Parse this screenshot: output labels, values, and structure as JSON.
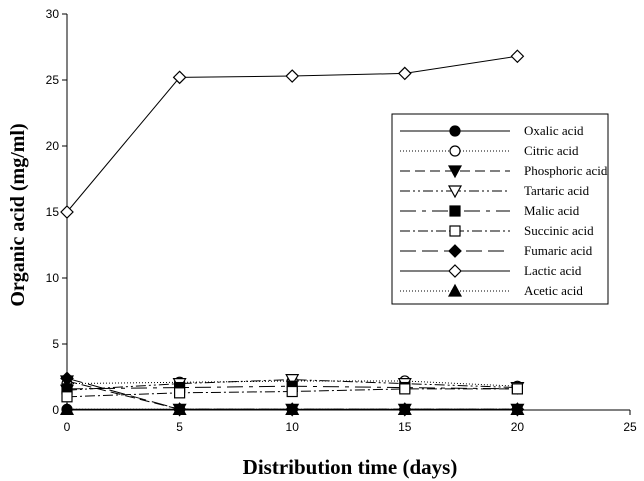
{
  "chart_data": {
    "type": "line",
    "title": "",
    "xlabel": "Distribution time (days)",
    "ylabel": "Organic acid (mg/ml)",
    "xlim": [
      0,
      25
    ],
    "ylim": [
      0,
      30
    ],
    "xticks": [
      0,
      5,
      10,
      15,
      20,
      25
    ],
    "yticks": [
      0,
      5,
      10,
      15,
      20,
      25,
      30
    ],
    "grid": false,
    "legend_position": "right",
    "x": [
      0,
      5,
      10,
      15,
      20
    ],
    "series": [
      {
        "name": "Oxalic acid",
        "values": [
          0.05,
          0.05,
          0.05,
          0.05,
          0.05
        ],
        "marker": "circle",
        "fill": "#000000",
        "dash": ""
      },
      {
        "name": "Citric acid",
        "values": [
          2.0,
          2.1,
          2.2,
          2.2,
          1.8
        ],
        "marker": "circle",
        "fill": "#ffffff",
        "dash": "1,2"
      },
      {
        "name": "Phosphoric acid",
        "values": [
          2.2,
          0.05,
          0.05,
          0.05,
          0.05
        ],
        "marker": "triangle-down",
        "fill": "#000000",
        "dash": "10,5"
      },
      {
        "name": "Tartaric acid",
        "values": [
          1.5,
          2.0,
          2.3,
          2.0,
          1.7
        ],
        "marker": "triangle-down",
        "fill": "#ffffff",
        "dash": "10,3,2,3,2,3"
      },
      {
        "name": "Malic acid",
        "values": [
          1.6,
          1.7,
          1.8,
          1.7,
          1.6
        ],
        "marker": "square",
        "fill": "#000000",
        "dash": "16,6,4,6"
      },
      {
        "name": "Succinic acid",
        "values": [
          1.0,
          1.3,
          1.4,
          1.6,
          1.6
        ],
        "marker": "square",
        "fill": "#ffffff",
        "dash": "10,3,2,3"
      },
      {
        "name": "Fumaric acid",
        "values": [
          2.4,
          0.05,
          0.05,
          0.05,
          0.05
        ],
        "marker": "diamond",
        "fill": "#000000",
        "dash": "16,6"
      },
      {
        "name": "Lactic acid",
        "values": [
          15.0,
          25.2,
          25.3,
          25.5,
          26.8
        ],
        "marker": "diamond",
        "fill": "#ffffff",
        "dash": ""
      },
      {
        "name": "Acetic acid",
        "values": [
          0.05,
          0.05,
          0.05,
          0.05,
          0.05
        ],
        "marker": "triangle-up",
        "fill": "#000000",
        "dash": "1,2"
      }
    ]
  }
}
